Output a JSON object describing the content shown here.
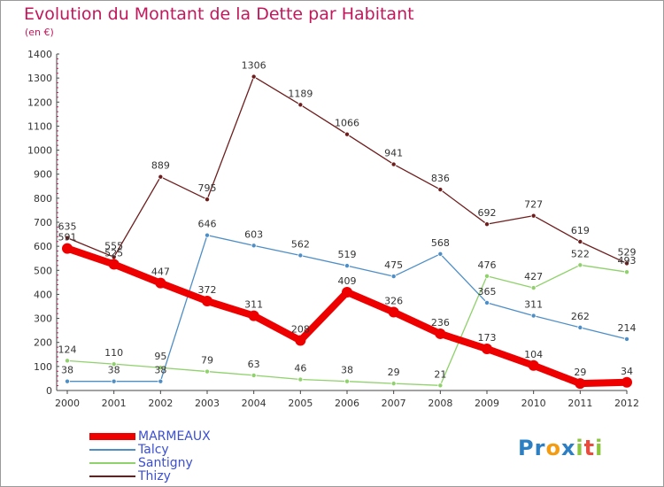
{
  "title": "Evolution du Montant de la Dette par Habitant",
  "subtitle": "(en €)",
  "logo": {
    "letters": [
      {
        "ch": "P",
        "color": "#2d7fc4"
      },
      {
        "ch": "r",
        "color": "#2d7fc4"
      },
      {
        "ch": "o",
        "color": "#f39c12"
      },
      {
        "ch": "x",
        "color": "#2d7fc4"
      },
      {
        "ch": "i",
        "color": "#8cc63f"
      },
      {
        "ch": "t",
        "color": "#e74c3c"
      },
      {
        "ch": "i",
        "color": "#8cc63f"
      }
    ]
  },
  "chart_data": {
    "type": "line",
    "x": [
      "2000",
      "2001",
      "2002",
      "2003",
      "2004",
      "2005",
      "2006",
      "2007",
      "2008",
      "2009",
      "2010",
      "2011",
      "2012"
    ],
    "ylim": [
      0,
      1400
    ],
    "yticks": [
      "0",
      "100",
      "200",
      "300",
      "400",
      "500",
      "600",
      "700",
      "800",
      "900",
      "1000",
      "1100",
      "1200",
      "1300",
      "1400"
    ],
    "grid": false,
    "legend_position": "bottom-left",
    "series": [
      {
        "name": "Thizy",
        "color": "#6e1d1d",
        "width": 1.3,
        "marker": 2.6,
        "values": [
          635,
          555,
          889,
          795,
          1306,
          1189,
          1066,
          941,
          836,
          692,
          727,
          619,
          529
        ],
        "labels": [
          "635",
          "555",
          "889",
          "795",
          "1306",
          "1189",
          "1066",
          "941",
          "836",
          "692",
          "727",
          "619",
          "529"
        ]
      },
      {
        "name": "Talcy",
        "color": "#4d8ec7",
        "width": 1.3,
        "marker": 2.6,
        "values": [
          38,
          38,
          38,
          646,
          603,
          562,
          519,
          475,
          568,
          365,
          311,
          262,
          214
        ],
        "labels": [
          "38",
          "38",
          "38",
          "646",
          "603",
          "562",
          "519",
          "475",
          "568",
          "365",
          "311",
          "262",
          "214"
        ]
      },
      {
        "name": "Santigny",
        "color": "#8fd16a",
        "width": 1.3,
        "marker": 2.6,
        "values": [
          124,
          110,
          95,
          79,
          63,
          46,
          38,
          29,
          21,
          476,
          427,
          522,
          493
        ],
        "labels": [
          "124",
          "110",
          "95",
          "79",
          "63",
          "46",
          "38",
          "29",
          "21",
          "476",
          "427",
          "522",
          "493"
        ]
      },
      {
        "name": "MARMEAUX",
        "color": "#ee0000",
        "width": 8,
        "marker": 6,
        "values": [
          591,
          525,
          447,
          372,
          311,
          208,
          409,
          326,
          236,
          173,
          104,
          29,
          34
        ],
        "labels": [
          "591",
          "525",
          "447",
          "372",
          "311",
          "208",
          "409",
          "326",
          "236",
          "173",
          "104",
          "29",
          "34"
        ]
      }
    ]
  },
  "legend": [
    {
      "name": "MARMEAUX",
      "color": "#ee0000",
      "thickness": 8
    },
    {
      "name": "Talcy",
      "color": "#4d8ec7",
      "thickness": 2
    },
    {
      "name": "Santigny",
      "color": "#8fd16a",
      "thickness": 2
    },
    {
      "name": "Thizy",
      "color": "#6e1d1d",
      "thickness": 2
    }
  ]
}
